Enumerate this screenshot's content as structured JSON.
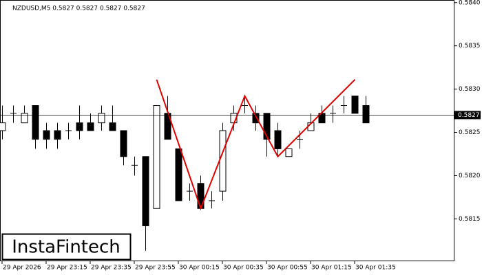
{
  "chart_data": {
    "type": "candlestick",
    "title": "NZDUSD,M5  0.5827 0.5827 0.5827 0.5827",
    "watermark": "InstaFintech",
    "categories": [
      "29 Apr 2026",
      null,
      null,
      null,
      "29 Apr 23:15",
      null,
      null,
      null,
      "29 Apr 23:35",
      null,
      null,
      null,
      "29 Apr 23:55",
      null,
      null,
      null,
      "30 Apr 00:15",
      null,
      null,
      null,
      "30 Apr 00:35",
      null,
      null,
      null,
      "30 Apr 00:55",
      null,
      null,
      null,
      "30 Apr 01:15",
      null,
      null,
      null,
      "30 Apr 01:35",
      null
    ],
    "open": [
      0.58252,
      0.58272,
      0.58261,
      0.58281,
      0.58252,
      0.58252,
      0.58252,
      0.58261,
      0.58261,
      0.58261,
      0.58261,
      0.58252,
      0.58212,
      0.58222,
      0.58162,
      0.58272,
      0.58231,
      0.58182,
      0.58191,
      0.58171,
      0.58182,
      0.58261,
      0.58281,
      0.58272,
      0.58272,
      0.58252,
      0.58222,
      0.58242,
      0.58252,
      0.58272,
      0.58272,
      0.58281,
      0.58292,
      0.58281
    ],
    "high": [
      0.58281,
      0.58281,
      0.58281,
      0.58281,
      0.58261,
      0.58261,
      0.58261,
      0.58281,
      0.58272,
      0.58281,
      0.58281,
      0.58252,
      0.58222,
      0.58222,
      0.58281,
      0.58292,
      0.58231,
      0.58191,
      0.582,
      0.58182,
      0.58261,
      0.58281,
      0.58292,
      0.58281,
      0.58272,
      0.58261,
      0.58231,
      0.58252,
      0.58272,
      0.58281,
      0.58281,
      0.58292,
      0.58292,
      0.58292
    ],
    "low": [
      0.58242,
      0.58261,
      0.58261,
      0.58231,
      0.58231,
      0.58231,
      0.58242,
      0.58242,
      0.58252,
      0.58252,
      0.58252,
      0.58212,
      0.582,
      0.58113,
      0.58162,
      0.58242,
      0.58171,
      0.58171,
      0.58162,
      0.58162,
      0.58171,
      0.58252,
      0.58272,
      0.58252,
      0.58222,
      0.58222,
      0.58222,
      0.58231,
      0.58252,
      0.58261,
      0.58261,
      0.58272,
      0.58272,
      0.58261
    ],
    "close": [
      0.58261,
      0.58272,
      0.58272,
      0.58242,
      0.58242,
      0.58242,
      0.58252,
      0.58252,
      0.58252,
      0.58272,
      0.58252,
      0.58222,
      0.58212,
      0.58142,
      0.58281,
      0.58242,
      0.58171,
      0.58182,
      0.58162,
      0.58171,
      0.58252,
      0.58272,
      0.58281,
      0.58261,
      0.58242,
      0.58231,
      0.58231,
      0.58242,
      0.58261,
      0.58261,
      0.58272,
      0.58281,
      0.58272,
      0.58261
    ],
    "up_color": "#ffffff",
    "down_color": "#000000",
    "last_price": 0.5827,
    "pattern": {
      "x_index": [
        14,
        18,
        22,
        25,
        32
      ],
      "values": [
        0.58311,
        0.58162,
        0.58292,
        0.58222,
        0.58311
      ],
      "color": "#e00000"
    },
    "ylim": [
      0.58101,
      0.58403
    ],
    "yticks": [
      {
        "value": 0.584,
        "label": "0.5840"
      },
      0.5835,
      {
        "value": 0.583,
        "label": "0.5830"
      },
      0.5825,
      {
        "value": 0.582,
        "label": "0.5820"
      },
      0.5815
    ]
  }
}
